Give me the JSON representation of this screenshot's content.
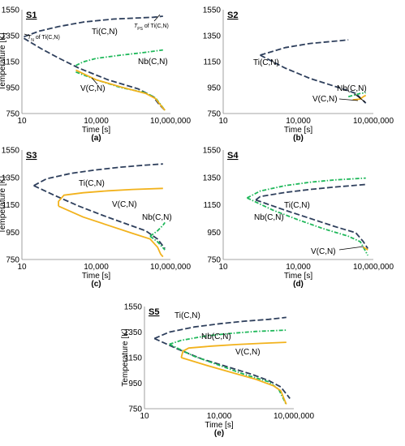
{
  "chart_data": [
    {
      "type": "line",
      "panel_title": "S1",
      "panel_label": "(a)",
      "xlabel": "Time [s]",
      "ylabel": "Temperature [K]",
      "x_scale": "log",
      "xlim": [
        10,
        10000000
      ],
      "ylim": [
        750,
        1550
      ],
      "x_ticks": [
        10,
        10000,
        10000000
      ],
      "x_tick_labels": [
        "10",
        "10,000",
        "10,000,000"
      ],
      "y_ticks": [
        750,
        950,
        1150,
        1350,
        1550
      ],
      "y_tick_labels": [
        "750",
        "950",
        "1150",
        "1350",
        "1550"
      ],
      "annotations": [
        "T_N of Ti(C,N)",
        "T_PS of Ti(C,N)"
      ],
      "series": [
        {
          "name": "Ti(C,N)",
          "color": "#2e3f5c",
          "dash": "long-dash",
          "points": [
            [
              12,
              1342
            ],
            [
              50,
              1385
            ],
            [
              300,
              1420
            ],
            [
              3000,
              1455
            ],
            [
              50000,
              1478
            ],
            [
              2000000,
              1492
            ],
            [
              5000000,
              1500
            ]
          ]
        },
        {
          "name": "Ti(C,N) dissolution",
          "color": "#2e3f5c",
          "dash": "long-dash",
          "points": [
            [
              12,
              1330
            ],
            [
              60,
              1250
            ],
            [
              300,
              1178
            ],
            [
              2000,
              1100
            ],
            [
              30000,
              1010
            ],
            [
              500000,
              940
            ],
            [
              2000000,
              880
            ],
            [
              3500000,
              820
            ],
            [
              6000000,
              775
            ]
          ]
        },
        {
          "name": "Nb(C,N)",
          "color": "#1fb85a",
          "dash": "dash-dot",
          "points": [
            [
              1500,
              1120
            ],
            [
              3000,
              1148
            ],
            [
              10000,
              1175
            ],
            [
              100000,
              1200
            ],
            [
              1000000,
              1222
            ],
            [
              5000000,
              1240
            ]
          ]
        },
        {
          "name": "Nb(C,N) branch",
          "color": "#1fb85a",
          "dash": "dash-dot",
          "points": [
            [
              1500,
              1070
            ],
            [
              10000,
              1010
            ],
            [
              100000,
              950
            ],
            [
              1000000,
              910
            ],
            [
              2500000,
              870
            ],
            [
              4000000,
              820
            ],
            [
              6000000,
              775
            ]
          ]
        },
        {
          "name": "V(C,N)",
          "color": "#f2b21c",
          "dash": "solid",
          "points": [
            [
              1500,
              1085
            ],
            [
              10000,
              1010
            ],
            [
              100000,
              955
            ],
            [
              1000000,
              905
            ],
            [
              2500000,
              865
            ],
            [
              4000000,
              815
            ],
            [
              6000000,
              775
            ]
          ]
        }
      ]
    },
    {
      "type": "line",
      "panel_title": "S2",
      "panel_label": "(b)",
      "xlabel": "Time [s]",
      "ylabel": "",
      "x_scale": "log",
      "xlim": [
        10,
        10000000
      ],
      "ylim": [
        750,
        1550
      ],
      "x_ticks": [
        10,
        10000,
        10000000
      ],
      "x_tick_labels": [
        "10",
        "10,000",
        "10,000,000"
      ],
      "y_ticks": [
        750,
        950,
        1150,
        1350,
        1550
      ],
      "y_tick_labels": [
        "750",
        "950",
        "1150",
        "1350",
        "1550"
      ],
      "series": [
        {
          "name": "Ti(C,N)",
          "color": "#2e3f5c",
          "dash": "long-dash",
          "points": [
            [
              300,
              1200
            ],
            [
              3000,
              1258
            ],
            [
              30000,
              1290
            ],
            [
              500000,
              1312
            ],
            [
              1000000,
              1318
            ]
          ]
        },
        {
          "name": "Ti(C,N) dissolution",
          "color": "#2e3f5c",
          "dash": "long-dash",
          "points": [
            [
              300,
              1200
            ],
            [
              3000,
              1100
            ],
            [
              30000,
              1020
            ],
            [
              500000,
              945
            ],
            [
              2000000,
              905
            ],
            [
              5000000,
              830
            ]
          ]
        },
        {
          "name": "Nb(C,N)",
          "color": "#1fb85a",
          "dash": "dash-dot",
          "points": [
            [
              1000000,
              880
            ],
            [
              3000000,
              905
            ],
            [
              5000000,
              910
            ]
          ]
        },
        {
          "name": "V(C,N)",
          "color": "#f2b21c",
          "dash": "solid",
          "points": [
            [
              1500000,
              855
            ],
            [
              3000000,
              862
            ],
            [
              4000000,
              880
            ],
            [
              5000000,
              890
            ]
          ]
        }
      ]
    },
    {
      "type": "line",
      "panel_title": "S3",
      "panel_label": "(c)",
      "xlabel": "Time [s]",
      "ylabel": "Temperature [K]",
      "x_scale": "log",
      "xlim": [
        10,
        10000000
      ],
      "ylim": [
        750,
        1550
      ],
      "x_ticks": [
        10,
        10000,
        10000000
      ],
      "x_tick_labels": [
        "10",
        "10,000",
        "10,000,000"
      ],
      "y_ticks": [
        750,
        950,
        1150,
        1350,
        1550
      ],
      "y_tick_labels": [
        "750",
        "950",
        "1150",
        "1350",
        "1550"
      ],
      "series": [
        {
          "name": "Ti(C,N)",
          "color": "#2e3f5c",
          "dash": "long-dash",
          "points": [
            [
              30,
              1290
            ],
            [
              100,
              1340
            ],
            [
              1000,
              1380
            ],
            [
              10000,
              1405
            ],
            [
              100000,
              1425
            ],
            [
              1000000,
              1440
            ],
            [
              5000000,
              1448
            ]
          ]
        },
        {
          "name": "Ti(C,N) dissolution",
          "color": "#2e3f5c",
          "dash": "long-dash",
          "points": [
            [
              30,
              1290
            ],
            [
              200,
              1220
            ],
            [
              2000,
              1140
            ],
            [
              20000,
              1070
            ],
            [
              200000,
              1005
            ],
            [
              1000000,
              960
            ],
            [
              3000000,
              900
            ],
            [
              6000000,
              830
            ]
          ]
        },
        {
          "name": "V(C,N)",
          "color": "#f2b21c",
          "dash": "solid",
          "points": [
            [
              300,
              1140
            ],
            [
              300,
              1175
            ],
            [
              500,
              1220
            ],
            [
              3000,
              1238
            ],
            [
              30000,
              1252
            ],
            [
              300000,
              1262
            ],
            [
              5000000,
              1270
            ]
          ]
        },
        {
          "name": "V(C,N) branch",
          "color": "#f2b21c",
          "dash": "solid",
          "points": [
            [
              300,
              1140
            ],
            [
              3000,
              1060
            ],
            [
              30000,
              1000
            ],
            [
              300000,
              940
            ],
            [
              1500000,
              900
            ],
            [
              3000000,
              840
            ],
            [
              4000000,
              790
            ],
            [
              5000000,
              770
            ]
          ]
        },
        {
          "name": "Nb(C,N)",
          "color": "#1fb85a",
          "dash": "dash-dot",
          "points": [
            [
              1500000,
              920
            ],
            [
              3000000,
              960
            ],
            [
              5000000,
              1000
            ],
            [
              6000000,
              1020
            ]
          ]
        },
        {
          "name": "Nb(C,N) branch",
          "color": "#1fb85a",
          "dash": "dash-dot",
          "points": [
            [
              1500000,
              920
            ],
            [
              3000000,
              880
            ],
            [
              6000000,
              820
            ]
          ]
        }
      ]
    },
    {
      "type": "line",
      "panel_title": "S4",
      "panel_label": "(d)",
      "xlabel": "Time [s]",
      "ylabel": "",
      "x_scale": "log",
      "xlim": [
        10,
        10000000
      ],
      "ylim": [
        750,
        1550
      ],
      "x_ticks": [
        10,
        10000,
        10000000
      ],
      "x_tick_labels": [
        "10",
        "10,000",
        "10,000,000"
      ],
      "y_ticks": [
        750,
        950,
        1150,
        1350,
        1550
      ],
      "y_tick_labels": [
        "750",
        "950",
        "1150",
        "1350",
        "1550"
      ],
      "series": [
        {
          "name": "Nb(C,N)",
          "color": "#1fb85a",
          "dash": "dash-dot",
          "points": [
            [
              90,
              1200
            ],
            [
              300,
              1250
            ],
            [
              3000,
              1290
            ],
            [
              30000,
              1315
            ],
            [
              300000,
              1332
            ],
            [
              5000000,
              1345
            ]
          ]
        },
        {
          "name": "Nb(C,N) branch",
          "color": "#1fb85a",
          "dash": "dash-dot",
          "points": [
            [
              90,
              1200
            ],
            [
              1000,
              1110
            ],
            [
              10000,
              1040
            ],
            [
              100000,
              975
            ],
            [
              1000000,
              920
            ],
            [
              3000000,
              880
            ],
            [
              6000000,
              780
            ]
          ]
        },
        {
          "name": "Ti(C,N)",
          "color": "#2e3f5c",
          "dash": "long-dash",
          "points": [
            [
              200,
              1185
            ],
            [
              300,
              1210
            ],
            [
              3000,
              1240
            ],
            [
              30000,
              1262
            ],
            [
              300000,
              1280
            ],
            [
              5000000,
              1298
            ]
          ]
        },
        {
          "name": "Ti(C,N) dissolution",
          "color": "#2e3f5c",
          "dash": "long-dash",
          "points": [
            [
              200,
              1185
            ],
            [
              3000,
              1110
            ],
            [
              30000,
              1050
            ],
            [
              300000,
              990
            ],
            [
              2000000,
              945
            ],
            [
              4000000,
              880
            ],
            [
              6000000,
              830
            ]
          ]
        },
        {
          "name": "V(C,N)",
          "color": "#f2b21c",
          "dash": "solid",
          "points": [
            [
              4000000,
              840
            ],
            [
              5000000,
              830
            ],
            [
              6000000,
              820
            ]
          ]
        }
      ]
    },
    {
      "type": "line",
      "panel_title": "S5",
      "panel_label": "(e)",
      "xlabel": "Time [s]",
      "ylabel": "Temperature [K]",
      "x_scale": "log",
      "xlim": [
        10,
        10000000
      ],
      "ylim": [
        750,
        1550
      ],
      "x_ticks": [
        10,
        10000,
        10000000
      ],
      "x_tick_labels": [
        "10",
        "10,000",
        "10,000,000"
      ],
      "y_ticks": [
        750,
        950,
        1150,
        1350,
        1550
      ],
      "y_tick_labels": [
        "750",
        "950",
        "1150",
        "1350",
        "1550"
      ],
      "series": [
        {
          "name": "Ti(C,N)",
          "color": "#2e3f5c",
          "dash": "long-dash",
          "points": [
            [
              25,
              1300
            ],
            [
              100,
              1350
            ],
            [
              1000,
              1390
            ],
            [
              10000,
              1415
            ],
            [
              100000,
              1435
            ],
            [
              1000000,
              1450
            ],
            [
              5000000,
              1465
            ]
          ]
        },
        {
          "name": "Ti(C,N) dissolution",
          "color": "#2e3f5c",
          "dash": "long-dash",
          "points": [
            [
              25,
              1300
            ],
            [
              200,
              1220
            ],
            [
              2000,
              1140
            ],
            [
              20000,
              1080
            ],
            [
              200000,
              1020
            ],
            [
              1000000,
              970
            ],
            [
              3000000,
              920
            ],
            [
              7000000,
              830
            ]
          ]
        },
        {
          "name": "Nb(C,N)",
          "color": "#1fb85a",
          "dash": "dash-dot",
          "points": [
            [
              100,
              1255
            ],
            [
              300,
              1285
            ],
            [
              3000,
              1320
            ],
            [
              30000,
              1340
            ],
            [
              300000,
              1355
            ],
            [
              5000000,
              1365
            ]
          ]
        },
        {
          "name": "Nb(C,N) branch",
          "color": "#1fb85a",
          "dash": "dash-dot",
          "points": [
            [
              100,
              1255
            ],
            [
              1000,
              1160
            ],
            [
              10000,
              1090
            ],
            [
              100000,
              1020
            ],
            [
              1000000,
              960
            ],
            [
              2500000,
              900
            ],
            [
              4000000,
              820
            ],
            [
              5000000,
              780
            ]
          ]
        },
        {
          "name": "V(C,N)",
          "color": "#f2b21c",
          "dash": "solid",
          "points": [
            [
              300,
              1150
            ],
            [
              350,
              1200
            ],
            [
              600,
              1225
            ],
            [
              5000,
              1240
            ],
            [
              50000,
              1252
            ],
            [
              500000,
              1262
            ],
            [
              5000000,
              1270
            ]
          ]
        },
        {
          "name": "V(C,N) branch",
          "color": "#f2b21c",
          "dash": "solid",
          "points": [
            [
              300,
              1150
            ],
            [
              3000,
              1090
            ],
            [
              30000,
              1035
            ],
            [
              300000,
              980
            ],
            [
              1500000,
              930
            ],
            [
              3000000,
              890
            ],
            [
              4000000,
              830
            ],
            [
              5000000,
              785
            ]
          ]
        }
      ]
    }
  ],
  "labels": {
    "s1": {
      "ti": "Ti(C,N)",
      "nb": "Nb(C,N)",
      "v": "V(C,N)",
      "tn_main": "T",
      "tn_sub": "N",
      "tn_rest": " of Ti(C,N)",
      "tps_main": "T",
      "tps_sub": "PS",
      "tps_rest": " of Ti(C,N)"
    },
    "s2": {
      "ti": "Ti(C,N)",
      "nb": "Nb(C,N)",
      "v": "V(C,N)"
    },
    "s3": {
      "ti": "Ti(C,N)",
      "v": "V(C,N)",
      "nb": "Nb(C,N)"
    },
    "s4": {
      "ti": "Ti(C,N)",
      "nb": "Nb(C,N)",
      "v": "V(C,N)"
    },
    "s5": {
      "ti": "Ti(C,N)",
      "nb": "Nb(C,N)",
      "v": "V(C,N)"
    }
  }
}
